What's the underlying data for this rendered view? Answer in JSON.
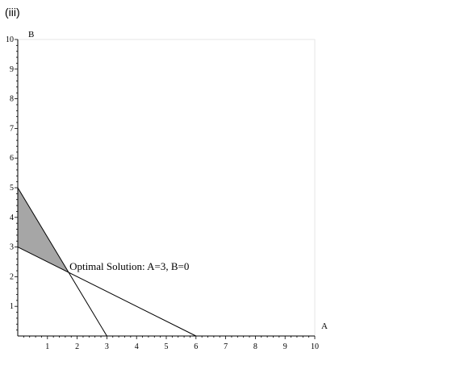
{
  "panel_label": "(iii)",
  "chart_data": {
    "type": "line",
    "title": "",
    "xlabel": "A",
    "ylabel": "B",
    "xlim": [
      0,
      10
    ],
    "ylim": [
      0,
      10
    ],
    "x_ticks": [
      "1",
      "2",
      "3",
      "4",
      "5",
      "6",
      "7",
      "8",
      "9",
      "10"
    ],
    "y_ticks": [
      "1",
      "2",
      "3",
      "4",
      "5",
      "6",
      "7",
      "8",
      "9",
      "10"
    ],
    "grid": false,
    "series": [
      {
        "values": [
          [
            0,
            5
          ],
          [
            3,
            0
          ]
        ]
      },
      {
        "values": [
          [
            0,
            3
          ],
          [
            6,
            0
          ]
        ]
      }
    ],
    "feasible_region": [
      [
        0,
        5
      ],
      [
        1.714,
        2.143
      ],
      [
        0,
        3
      ]
    ],
    "feasible_region_color": "#a6a6a6",
    "annotation": {
      "text": "Optimal Solution: A=3, B=0",
      "x": 1.714,
      "y": 2.143
    }
  }
}
